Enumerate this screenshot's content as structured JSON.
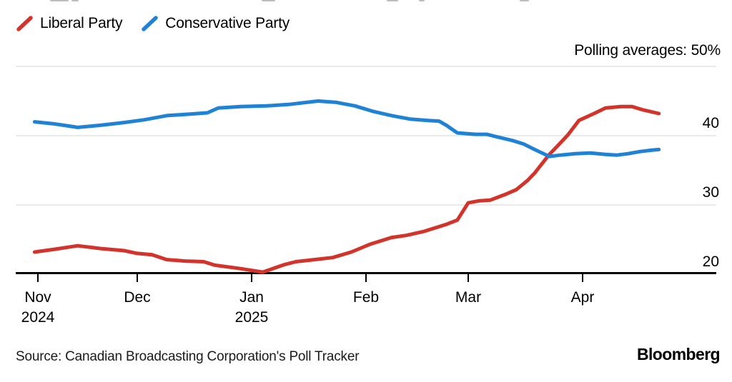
{
  "page": {
    "source_text": "Source: Canadian Broadcasting Corporation's Poll Tracker",
    "brand": "Bloomberg"
  },
  "legend": {
    "position": "top-left",
    "items": [
      {
        "label": "Liberal Party",
        "color": "#d2332b",
        "icon": "slash-icon"
      },
      {
        "label": "Conservative Party",
        "color": "#2082d5",
        "icon": "slash-icon"
      }
    ]
  },
  "chart_data": {
    "type": "line",
    "annotation": "Polling averages: 50%",
    "unit": "%",
    "grid": true,
    "x_axis": {
      "ticks": [
        {
          "label": "Nov",
          "sublabel": "2024",
          "date": "2024-11-01"
        },
        {
          "label": "Dec",
          "date": "2024-12-01"
        },
        {
          "label": "Jan",
          "sublabel": "2025",
          "date": "2025-01-01"
        },
        {
          "label": "Feb",
          "date": "2025-02-01"
        },
        {
          "label": "Mar",
          "date": "2025-03-01"
        },
        {
          "label": "Apr",
          "date": "2025-04-01"
        }
      ]
    },
    "y_axis": {
      "ticks": [
        40,
        30,
        20
      ],
      "top_value": 50,
      "range": [
        20,
        50
      ],
      "labels_side": "right"
    },
    "series": [
      {
        "name": "Liberal Party",
        "color": "#d2332b",
        "points": [
          [
            "2024-10-31",
            23.2
          ],
          [
            "2024-11-06",
            23.6
          ],
          [
            "2024-11-13",
            24.1
          ],
          [
            "2024-11-20",
            23.7
          ],
          [
            "2024-11-27",
            23.4
          ],
          [
            "2024-12-01",
            23.0
          ],
          [
            "2024-12-05",
            22.8
          ],
          [
            "2024-12-09",
            22.1
          ],
          [
            "2024-12-14",
            21.9
          ],
          [
            "2024-12-19",
            21.8
          ],
          [
            "2024-12-22",
            21.3
          ],
          [
            "2024-12-29",
            20.8
          ],
          [
            "2025-01-04",
            20.3
          ],
          [
            "2025-01-10",
            21.4
          ],
          [
            "2025-01-13",
            21.8
          ],
          [
            "2025-01-18",
            22.1
          ],
          [
            "2025-01-23",
            22.4
          ],
          [
            "2025-01-28",
            23.2
          ],
          [
            "2025-02-02",
            24.3
          ],
          [
            "2025-02-08",
            25.3
          ],
          [
            "2025-02-12",
            25.6
          ],
          [
            "2025-02-17",
            26.2
          ],
          [
            "2025-02-23",
            27.2
          ],
          [
            "2025-02-26",
            27.8
          ],
          [
            "2025-03-01",
            30.3
          ],
          [
            "2025-03-04",
            30.6
          ],
          [
            "2025-03-07",
            30.7
          ],
          [
            "2025-03-11",
            31.5
          ],
          [
            "2025-03-14",
            32.2
          ],
          [
            "2025-03-17",
            33.5
          ],
          [
            "2025-03-19",
            34.6
          ],
          [
            "2025-03-23",
            37.3
          ],
          [
            "2025-03-25",
            38.4
          ],
          [
            "2025-03-28",
            40.1
          ],
          [
            "2025-03-31",
            42.2
          ],
          [
            "2025-04-04",
            43.2
          ],
          [
            "2025-04-07",
            44.0
          ],
          [
            "2025-04-11",
            44.2
          ],
          [
            "2025-04-14",
            44.2
          ],
          [
            "2025-04-17",
            43.7
          ],
          [
            "2025-04-21",
            43.2
          ]
        ]
      },
      {
        "name": "Conservative Party",
        "color": "#2082d5",
        "points": [
          [
            "2024-10-31",
            42.0
          ],
          [
            "2024-11-06",
            41.7
          ],
          [
            "2024-11-13",
            41.2
          ],
          [
            "2024-11-20",
            41.5
          ],
          [
            "2024-11-27",
            41.9
          ],
          [
            "2024-12-03",
            42.3
          ],
          [
            "2024-12-09",
            42.9
          ],
          [
            "2024-12-15",
            43.1
          ],
          [
            "2024-12-20",
            43.3
          ],
          [
            "2024-12-23",
            44.0
          ],
          [
            "2024-12-29",
            44.2
          ],
          [
            "2025-01-05",
            44.3
          ],
          [
            "2025-01-11",
            44.5
          ],
          [
            "2025-01-19",
            45.0
          ],
          [
            "2025-01-24",
            44.8
          ],
          [
            "2025-01-29",
            44.3
          ],
          [
            "2025-02-03",
            43.5
          ],
          [
            "2025-02-08",
            42.9
          ],
          [
            "2025-02-13",
            42.4
          ],
          [
            "2025-02-18",
            42.2
          ],
          [
            "2025-02-21",
            42.1
          ],
          [
            "2025-02-23",
            41.5
          ],
          [
            "2025-02-26",
            40.4
          ],
          [
            "2025-03-03",
            40.2
          ],
          [
            "2025-03-06",
            40.2
          ],
          [
            "2025-03-09",
            39.8
          ],
          [
            "2025-03-13",
            39.3
          ],
          [
            "2025-03-16",
            38.8
          ],
          [
            "2025-03-19",
            38.0
          ],
          [
            "2025-03-23",
            37.0
          ],
          [
            "2025-03-26",
            37.2
          ],
          [
            "2025-03-30",
            37.4
          ],
          [
            "2025-04-03",
            37.5
          ],
          [
            "2025-04-07",
            37.3
          ],
          [
            "2025-04-10",
            37.2
          ],
          [
            "2025-04-13",
            37.4
          ],
          [
            "2025-04-16",
            37.7
          ],
          [
            "2025-04-19",
            37.9
          ],
          [
            "2025-04-21",
            38.0
          ]
        ]
      }
    ]
  }
}
